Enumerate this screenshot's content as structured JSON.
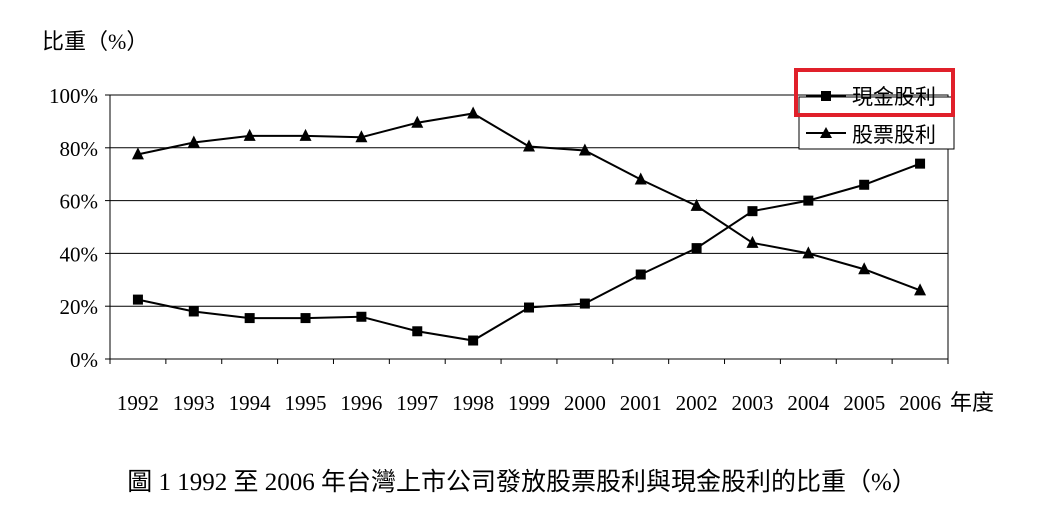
{
  "chart_data": {
    "type": "line",
    "ylabel": "比重（%）",
    "xlabel": "年度",
    "caption": "圖 1 1992 至 2006 年台灣上市公司發放股票股利與現金股利的比重（%）",
    "categories": [
      "1992",
      "1993",
      "1994",
      "1995",
      "1996",
      "1997",
      "1998",
      "1999",
      "2000",
      "2001",
      "2002",
      "2003",
      "2004",
      "2005",
      "2006"
    ],
    "y_ticks": [
      "0%",
      "20%",
      "40%",
      "60%",
      "80%",
      "100%"
    ],
    "ylim": [
      0,
      100
    ],
    "grid": true,
    "legend_position": "top-right",
    "series": [
      {
        "name": "現金股利",
        "marker": "square",
        "values": [
          22.5,
          18,
          15.5,
          15.5,
          16,
          10.5,
          7,
          19.5,
          21,
          32,
          42,
          56,
          60,
          66,
          74
        ]
      },
      {
        "name": "股票股利",
        "marker": "triangle",
        "values": [
          77.5,
          82,
          84.5,
          84.5,
          84,
          89.5,
          93,
          80.5,
          79,
          68,
          58,
          44,
          40,
          34,
          26
        ]
      }
    ],
    "highlight_color": "#e0202a"
  }
}
